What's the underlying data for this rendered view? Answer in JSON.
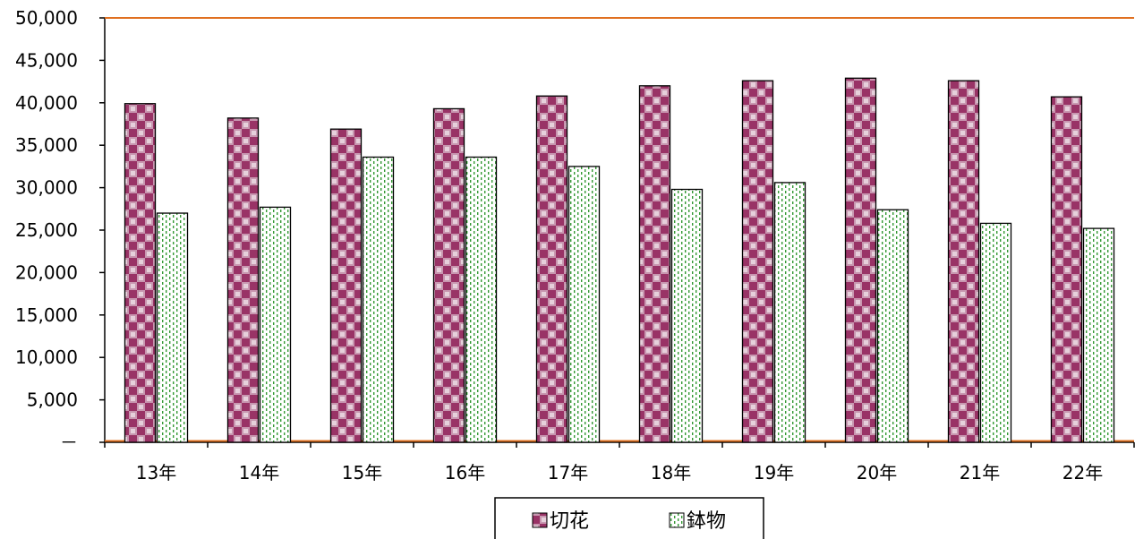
{
  "chart_data": {
    "type": "bar",
    "title": "",
    "xlabel": "",
    "ylabel": "",
    "categories": [
      "13年",
      "14年",
      "15年",
      "16年",
      "17年",
      "18年",
      "19年",
      "20年",
      "21年",
      "22年"
    ],
    "series": [
      {
        "name": "切花",
        "values": [
          39900,
          38200,
          36900,
          39300,
          40800,
          42000,
          42600,
          42900,
          42600,
          40700
        ],
        "color": "#993366",
        "pattern": "checkerboard"
      },
      {
        "name": "鉢物",
        "values": [
          27000,
          27700,
          33600,
          33600,
          32500,
          29800,
          30600,
          27400,
          25800,
          25200
        ],
        "color": "#339933",
        "pattern": "dotted-vertical"
      }
    ],
    "ylim": [
      0,
      50000
    ],
    "y_ticks": [
      "50,000",
      "45,000",
      "40,000",
      "35,000",
      "30,000",
      "25,000",
      "20,000",
      "15,000",
      "10,000",
      "5,000",
      "－"
    ],
    "y_tick_values": [
      50000,
      45000,
      40000,
      35000,
      30000,
      25000,
      20000,
      15000,
      10000,
      5000,
      0
    ],
    "gridlines": [
      50000
    ],
    "gridline_color": "#e07020",
    "grid": false,
    "legend_position": "bottom"
  }
}
